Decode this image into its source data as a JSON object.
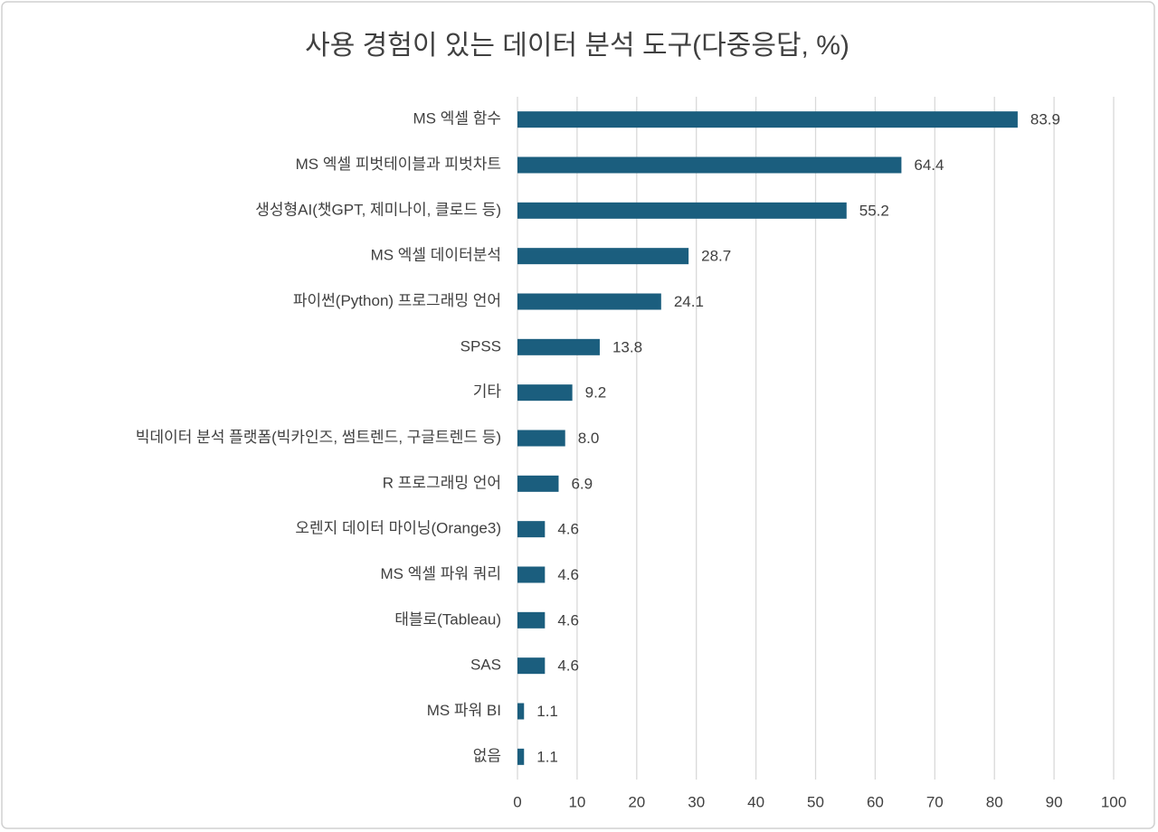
{
  "chart_data": {
    "type": "barh",
    "title": "사용 경험이 있는 데이터 분석 도구(다중응답, %)",
    "categories": [
      "MS 엑셀 함수",
      "MS 엑셀 피벗테이블과 피벗차트",
      "생성형AI(챗GPT, 제미나이, 클로드 등)",
      "MS 엑셀 데이터분석",
      "파이썬(Python) 프로그래밍 언어",
      "SPSS",
      "기타",
      "빅데이터 분석 플랫폼(빅카인즈, 썸트렌드, 구글트렌드 등)",
      "R 프로그래밍 언어",
      "오렌지 데이터 마이닝(Orange3)",
      "MS 엑셀 파워 쿼리",
      "태블로(Tableau)",
      "SAS",
      "MS 파워 BI",
      "없음"
    ],
    "values": [
      83.9,
      64.4,
      55.2,
      28.7,
      24.1,
      13.8,
      9.2,
      8.0,
      6.9,
      4.6,
      4.6,
      4.6,
      4.6,
      1.1,
      1.1
    ],
    "value_labels": [
      "83.9",
      "64.4",
      "55.2",
      "28.7",
      "24.1",
      "13.8",
      "9.2",
      "8.0",
      "6.9",
      "4.6",
      "4.6",
      "4.6",
      "4.6",
      "1.1",
      "1.1"
    ],
    "color": "#1b5e7e",
    "xlim": [
      0,
      100
    ],
    "xticks": [
      0,
      10,
      20,
      30,
      40,
      50,
      60,
      70,
      80,
      90,
      100
    ],
    "grid": true
  }
}
